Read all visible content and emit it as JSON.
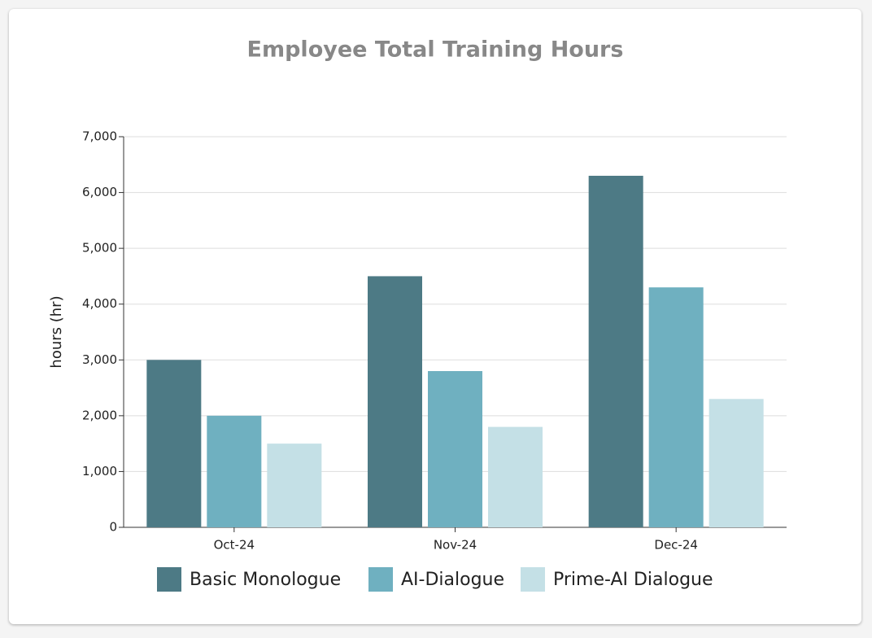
{
  "chart_data": {
    "type": "bar",
    "title": "Employee Total Training Hours",
    "y_label": "hours (hr)",
    "categories": [
      "Oct-24",
      "Nov-24",
      "Dec-24"
    ],
    "series": [
      {
        "name": "Basic Monologue",
        "color": "#4d7a85",
        "values": [
          3000,
          4500,
          6300
        ]
      },
      {
        "name": "AI-Dialogue",
        "color": "#6fb0c0",
        "values": [
          2000,
          2800,
          4300
        ]
      },
      {
        "name": "Prime-AI Dialogue",
        "color": "#c4e0e6",
        "values": [
          1500,
          1800,
          2300
        ]
      }
    ],
    "ylim": [
      0,
      7000
    ],
    "yticks": [
      0,
      {
        "value": 1000,
        "label": "1,000"
      },
      {
        "value": 2000,
        "label": "2,000"
      },
      {
        "value": 3000,
        "label": "3,000"
      },
      {
        "value": 4000,
        "label": "4,000"
      },
      {
        "value": 5000,
        "label": "5,000"
      },
      {
        "value": 6000,
        "label": "6,000"
      },
      {
        "value": 7000,
        "label": "7,000"
      }
    ],
    "grid": true,
    "legend": "bottom"
  }
}
